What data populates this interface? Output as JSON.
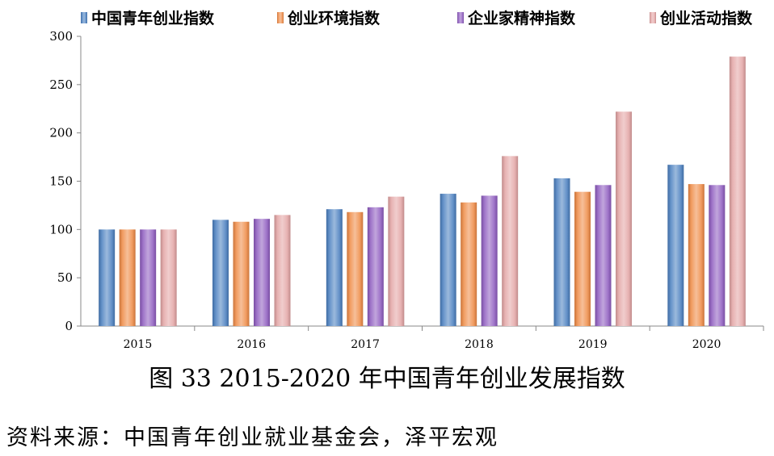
{
  "chart_data": {
    "type": "bar",
    "title": "",
    "xlabel": "",
    "ylabel": "",
    "categories": [
      "2015",
      "2016",
      "2017",
      "2018",
      "2019",
      "2020"
    ],
    "ylim": [
      0,
      300
    ],
    "yticks": [
      0,
      50,
      100,
      150,
      200,
      250,
      300
    ],
    "grid": false,
    "legend_placement": "top",
    "series": [
      {
        "name": "中国青年创业指数",
        "color": "#4a7fc0",
        "values": [
          100,
          110,
          121,
          137,
          153,
          167
        ]
      },
      {
        "name": "创业环境指数",
        "color": "#ef8a45",
        "values": [
          100,
          108,
          118,
          128,
          139,
          147
        ]
      },
      {
        "name": "企业家精神指数",
        "color": "#8e5cc0",
        "values": [
          100,
          111,
          123,
          135,
          146,
          146
        ]
      },
      {
        "name": "创业活动指数",
        "color": "#e3a4a4",
        "values": [
          100,
          115,
          134,
          176,
          222,
          279
        ]
      }
    ]
  },
  "caption": "图 33 2015-2020 年中国青年创业发展指数",
  "source": "资料来源：中国青年创业就业基金会，泽平宏观"
}
